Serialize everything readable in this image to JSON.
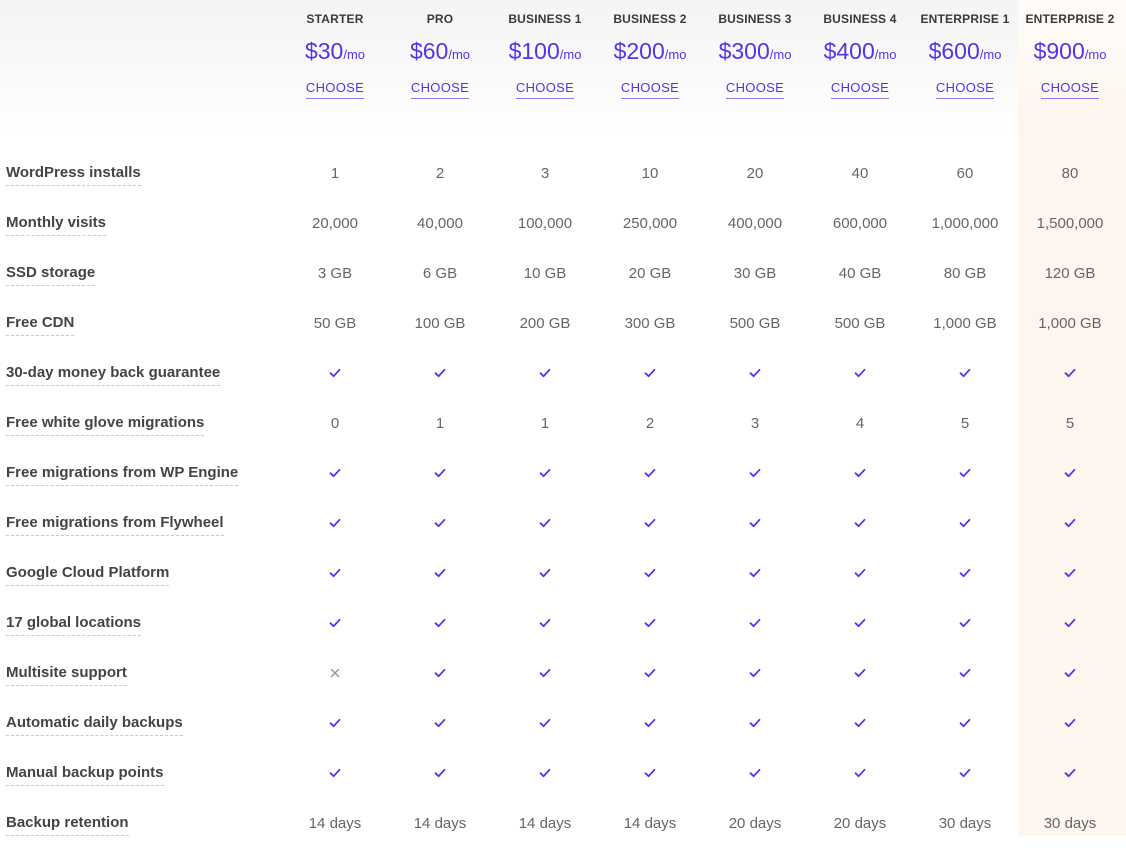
{
  "colors": {
    "accent": "#5333ed",
    "highlight_column": "#fdf6ee",
    "text": "#444444",
    "cross": "#9a9a9a"
  },
  "plans": [
    {
      "name": "STARTER",
      "price": "$30",
      "unit": "/mo",
      "cta": "CHOOSE"
    },
    {
      "name": "PRO",
      "price": "$60",
      "unit": "/mo",
      "cta": "CHOOSE"
    },
    {
      "name": "BUSINESS 1",
      "price": "$100",
      "unit": "/mo",
      "cta": "CHOOSE"
    },
    {
      "name": "BUSINESS 2",
      "price": "$200",
      "unit": "/mo",
      "cta": "CHOOSE"
    },
    {
      "name": "BUSINESS 3",
      "price": "$300",
      "unit": "/mo",
      "cta": "CHOOSE"
    },
    {
      "name": "BUSINESS 4",
      "price": "$400",
      "unit": "/mo",
      "cta": "CHOOSE"
    },
    {
      "name": "ENTERPRISE 1",
      "price": "$600",
      "unit": "/mo",
      "cta": "CHOOSE"
    },
    {
      "name": "ENTERPRISE 2",
      "price": "$900",
      "unit": "/mo",
      "cta": "CHOOSE"
    }
  ],
  "features": [
    {
      "label": "WordPress installs",
      "values": [
        "1",
        "2",
        "3",
        "10",
        "20",
        "40",
        "60",
        "80"
      ]
    },
    {
      "label": "Monthly visits",
      "values": [
        "20,000",
        "40,000",
        "100,000",
        "250,000",
        "400,000",
        "600,000",
        "1,000,000",
        "1,500,000"
      ]
    },
    {
      "label": "SSD storage",
      "values": [
        "3 GB",
        "6 GB",
        "10 GB",
        "20 GB",
        "30 GB",
        "40 GB",
        "80 GB",
        "120 GB"
      ]
    },
    {
      "label": "Free CDN",
      "values": [
        "50 GB",
        "100 GB",
        "200 GB",
        "300 GB",
        "500 GB",
        "500 GB",
        "1,000 GB",
        "1,000 GB"
      ]
    },
    {
      "label": "30-day money back guarantee",
      "values": [
        "check-icon",
        "check-icon",
        "check-icon",
        "check-icon",
        "check-icon",
        "check-icon",
        "check-icon",
        "check-icon"
      ]
    },
    {
      "label": "Free white glove migrations",
      "values": [
        "0",
        "1",
        "1",
        "2",
        "3",
        "4",
        "5",
        "5"
      ]
    },
    {
      "label": "Free migrations from WP Engine",
      "values": [
        "check-icon",
        "check-icon",
        "check-icon",
        "check-icon",
        "check-icon",
        "check-icon",
        "check-icon",
        "check-icon"
      ]
    },
    {
      "label": "Free migrations from Flywheel",
      "values": [
        "check-icon",
        "check-icon",
        "check-icon",
        "check-icon",
        "check-icon",
        "check-icon",
        "check-icon",
        "check-icon"
      ]
    },
    {
      "label": "Google Cloud Platform",
      "values": [
        "check-icon",
        "check-icon",
        "check-icon",
        "check-icon",
        "check-icon",
        "check-icon",
        "check-icon",
        "check-icon"
      ]
    },
    {
      "label": "17 global locations",
      "values": [
        "check-icon",
        "check-icon",
        "check-icon",
        "check-icon",
        "check-icon",
        "check-icon",
        "check-icon",
        "check-icon"
      ]
    },
    {
      "label": "Multisite support",
      "values": [
        "cross-icon",
        "check-icon",
        "check-icon",
        "check-icon",
        "check-icon",
        "check-icon",
        "check-icon",
        "check-icon"
      ]
    },
    {
      "label": "Automatic daily backups",
      "values": [
        "check-icon",
        "check-icon",
        "check-icon",
        "check-icon",
        "check-icon",
        "check-icon",
        "check-icon",
        "check-icon"
      ]
    },
    {
      "label": "Manual backup points",
      "values": [
        "check-icon",
        "check-icon",
        "check-icon",
        "check-icon",
        "check-icon",
        "check-icon",
        "check-icon",
        "check-icon"
      ]
    },
    {
      "label": "Backup retention",
      "values": [
        "14 days",
        "14 days",
        "14 days",
        "14 days",
        "20 days",
        "20 days",
        "30 days",
        "30 days"
      ]
    }
  ]
}
